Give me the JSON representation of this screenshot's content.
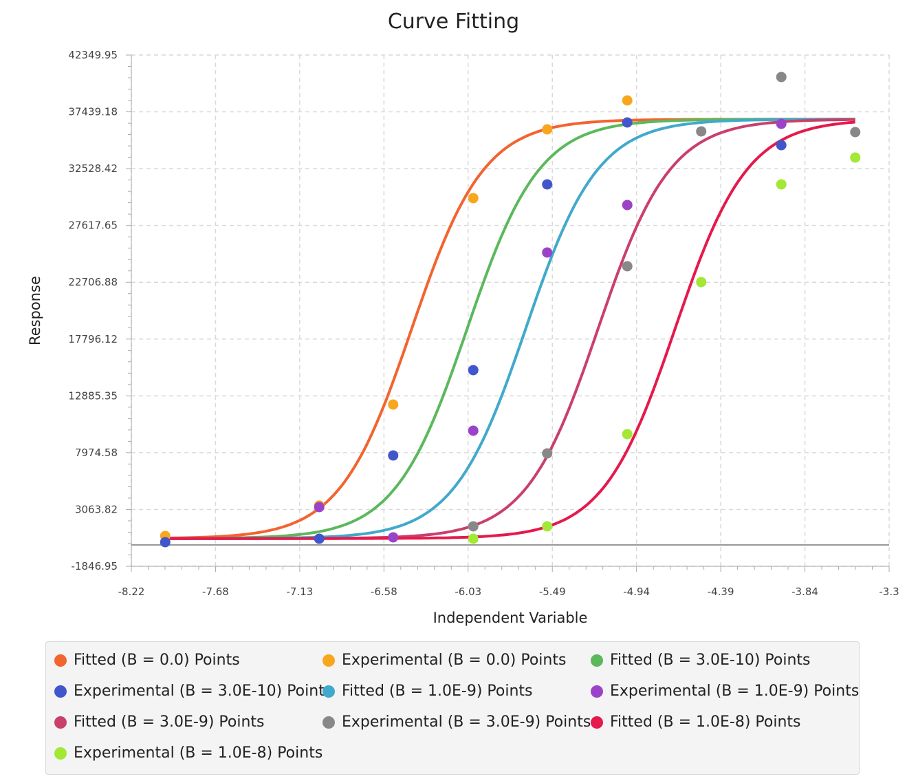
{
  "chart_data": {
    "type": "scatter",
    "title": "Curve Fitting",
    "xlabel": "Independent Variable",
    "ylabel": "Response",
    "xlim": [
      -8.22,
      -3.3
    ],
    "ylim": [
      -1846.95,
      42349.95
    ],
    "x_ticks": [
      "-8.22",
      "-7.68",
      "-7.13",
      "-6.58",
      "-6.03",
      "-5.49",
      "-4.94",
      "-4.39",
      "-3.84",
      "-3.3"
    ],
    "y_ticks": [
      "-1846.95",
      "3063.82",
      "7974.58",
      "12885.35",
      "17796.12",
      "22706.88",
      "27617.65",
      "32528.42",
      "37439.18",
      "42349.95"
    ],
    "grid": true,
    "legend_position": "bottom",
    "series": [
      {
        "name": "Fitted (B = 0.0) Points",
        "kind": "line",
        "color": "#f26430",
        "ec50": -6.4,
        "bottom": 550,
        "top": 36800,
        "hill": 1.85,
        "x_range": [
          -8,
          -3.52
        ]
      },
      {
        "name": "Experimental (B = 0.0) Points",
        "kind": "scatter",
        "color": "#f9a61f",
        "x": [
          -8,
          -7,
          -6.52,
          -6,
          -5.52,
          -5
        ],
        "y": [
          773,
          3400,
          12134,
          29978,
          35926,
          38424
        ]
      },
      {
        "name": "Fitted (B = 3.0E-10) Points",
        "kind": "line",
        "color": "#5cb85c",
        "ec50": -6.04,
        "bottom": 550,
        "top": 36800,
        "hill": 1.85,
        "x_range": [
          -8,
          -3.52
        ]
      },
      {
        "name": "Experimental (B = 3.0E-10) Points",
        "kind": "scatter",
        "color": "#4256cc",
        "x": [
          -8,
          -7,
          -6.52,
          -6,
          -5.52,
          -5,
          -4
        ],
        "y": [
          238,
          536,
          7733,
          15108,
          31168,
          36521,
          34558
        ]
      },
      {
        "name": "Fitted (B = 1.0E-9) Points",
        "kind": "line",
        "color": "#41a9cb",
        "ec50": -5.66,
        "bottom": 550,
        "top": 36800,
        "hill": 1.85,
        "x_range": [
          -8,
          -3.52
        ]
      },
      {
        "name": "Experimental (B = 1.0E-9) Points",
        "kind": "scatter",
        "color": "#9b43c8",
        "x": [
          -7,
          -6.52,
          -6,
          -5.52,
          -5,
          -4
        ],
        "y": [
          3272,
          655,
          9874,
          25279,
          29383,
          36402
        ]
      },
      {
        "name": "Fitted (B = 3.0E-9) Points",
        "kind": "line",
        "color": "#c9406a",
        "ec50": -5.19,
        "bottom": 550,
        "top": 36800,
        "hill": 1.85,
        "x_range": [
          -8,
          -3.52
        ]
      },
      {
        "name": "Experimental (B = 3.0E-9) Points",
        "kind": "scatter",
        "color": "#888888",
        "x": [
          -6,
          -5.52,
          -5,
          -4.52,
          -4,
          -3.52
        ],
        "y": [
          1606,
          7911,
          24090,
          35748,
          40447,
          35688
        ]
      },
      {
        "name": "Fitted (B = 1.0E-8) Points",
        "kind": "line",
        "color": "#e5194c",
        "ec50": -4.69,
        "bottom": 550,
        "top": 36800,
        "hill": 1.85,
        "x_range": [
          -8,
          -3.52
        ]
      },
      {
        "name": "Experimental (B = 1.0E-8) Points",
        "kind": "scatter",
        "color": "#a2e834",
        "x": [
          -6,
          -5.52,
          -5,
          -4.52,
          -4,
          -3.52
        ],
        "y": [
          536,
          1606,
          9577,
          22722,
          31168,
          33487
        ]
      }
    ]
  }
}
